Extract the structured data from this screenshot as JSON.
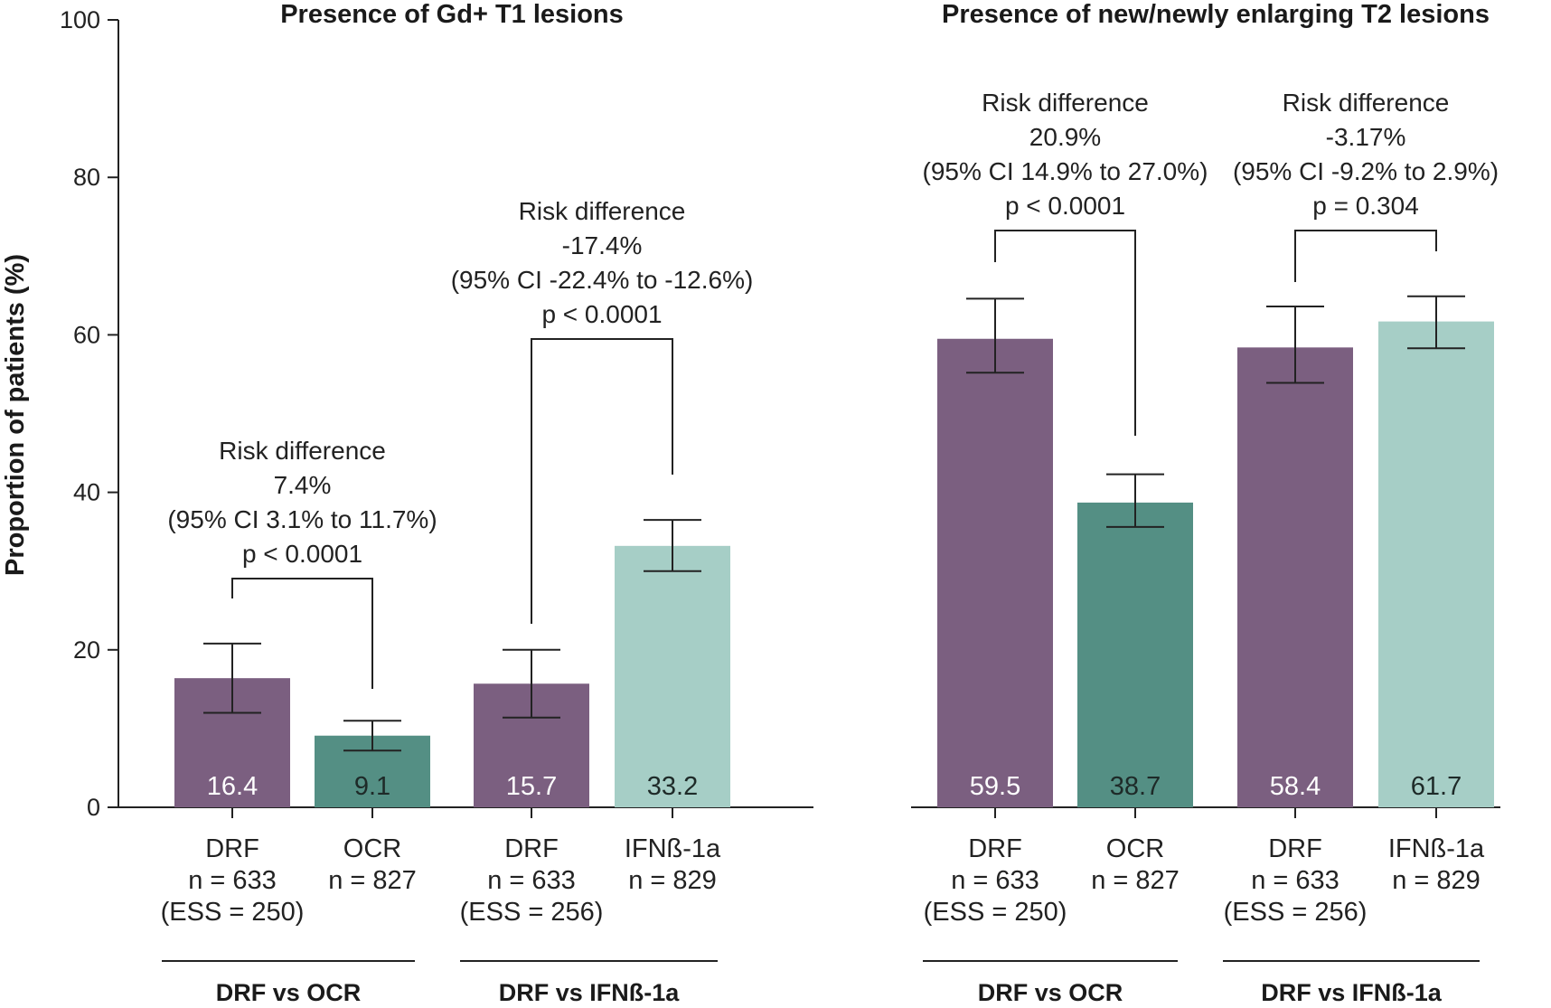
{
  "chart_data": {
    "type": "bar",
    "ylabel": "Proportion of patients (%)",
    "ylim": [
      0,
      100
    ],
    "yticks": [
      "0",
      "20",
      "40",
      "60",
      "80",
      "100"
    ],
    "grid": false,
    "colors": {
      "DRF": "#7b5f80",
      "OCR": "#548f84",
      "IFNb": "#a6cec6",
      "label_light": "#ffffff",
      "label_dark": "#1e2a28"
    },
    "panels": [
      {
        "title": "Presence of Gd+ T1 lesions",
        "bars": [
          {
            "name": "DRF",
            "lines": [
              "DRF",
              "n = 633",
              "(ESS = 250)"
            ],
            "value": 16.4,
            "value_label": "16.4",
            "err_low": 12.0,
            "err_high": 20.8,
            "color_key": "DRF",
            "label_color": "label_light"
          },
          {
            "name": "OCR",
            "lines": [
              "OCR",
              "n = 827"
            ],
            "value": 9.1,
            "value_label": "9.1",
            "err_low": 7.2,
            "err_high": 11.0,
            "color_key": "OCR",
            "label_color": "label_dark"
          },
          {
            "name": "DRF",
            "lines": [
              "DRF",
              "n = 633",
              "(ESS = 256)"
            ],
            "value": 15.7,
            "value_label": "15.7",
            "err_low": 11.4,
            "err_high": 20.0,
            "color_key": "DRF",
            "label_color": "label_light"
          },
          {
            "name": "IFNß-1a",
            "lines": [
              "IFNß-1a",
              "n = 829"
            ],
            "value": 33.2,
            "value_label": "33.2",
            "err_low": 30.0,
            "err_high": 36.5,
            "color_key": "IFNb",
            "label_color": "label_dark"
          }
        ],
        "groups": [
          {
            "label": "DRF vs OCR",
            "bar_indices": [
              0,
              1
            ]
          },
          {
            "label": "DRF vs IFNß-1a",
            "bar_indices": [
              2,
              3
            ]
          }
        ],
        "comparisons": [
          {
            "bar_indices": [
              0,
              1
            ],
            "lines": [
              "Risk difference",
              "7.4%",
              "(95% CI 3.1% to 11.7%)",
              "p < 0.0001"
            ]
          },
          {
            "bar_indices": [
              2,
              3
            ],
            "lines": [
              "Risk difference",
              "-17.4%",
              "(95% CI -22.4% to -12.6%)",
              "p < 0.0001"
            ]
          }
        ]
      },
      {
        "title": "Presence of new/newly enlarging T2 lesions",
        "bars": [
          {
            "name": "DRF",
            "lines": [
              "DRF",
              "n = 633",
              "(ESS = 250)"
            ],
            "value": 59.5,
            "value_label": "59.5",
            "err_low": 55.2,
            "err_high": 64.6,
            "color_key": "DRF",
            "label_color": "label_light"
          },
          {
            "name": "OCR",
            "lines": [
              "OCR",
              "n = 827"
            ],
            "value": 38.7,
            "value_label": "38.7",
            "err_low": 35.6,
            "err_high": 42.3,
            "color_key": "OCR",
            "label_color": "label_dark"
          },
          {
            "name": "DRF",
            "lines": [
              "DRF",
              "n = 633",
              "(ESS = 256)"
            ],
            "value": 58.4,
            "value_label": "58.4",
            "err_low": 53.9,
            "err_high": 63.6,
            "color_key": "DRF",
            "label_color": "label_light"
          },
          {
            "name": "IFNß-1a",
            "lines": [
              "IFNß-1a",
              "n = 829"
            ],
            "value": 61.7,
            "value_label": "61.7",
            "err_low": 58.3,
            "err_high": 64.9,
            "color_key": "IFNb",
            "label_color": "label_dark"
          }
        ],
        "groups": [
          {
            "label": "DRF vs OCR",
            "bar_indices": [
              0,
              1
            ]
          },
          {
            "label": "DRF vs IFNß-1a",
            "bar_indices": [
              2,
              3
            ]
          }
        ],
        "comparisons": [
          {
            "bar_indices": [
              0,
              1
            ],
            "lines": [
              "Risk difference",
              "20.9%",
              "(95% CI 14.9% to 27.0%)",
              "p < 0.0001"
            ]
          },
          {
            "bar_indices": [
              2,
              3
            ],
            "lines": [
              "Risk difference",
              "-3.17%",
              "(95% CI -9.2% to 2.9%)",
              "p = 0.304"
            ]
          }
        ]
      }
    ]
  }
}
